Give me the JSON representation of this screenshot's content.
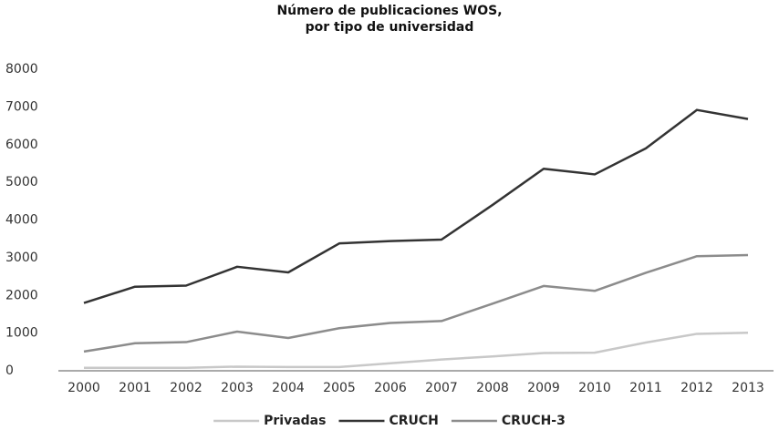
{
  "chart_data": {
    "type": "line",
    "title": [
      "Número de publicaciones WOS,",
      "por tipo de universidad"
    ],
    "categories": [
      "2000",
      "2001",
      "2002",
      "2003",
      "2004",
      "2005",
      "2006",
      "2007",
      "2008",
      "2009",
      "2010",
      "2011",
      "2012",
      "2013"
    ],
    "series": [
      {
        "name": "Privadas",
        "color": "#c8c8c8",
        "values": [
          80,
          80,
          80,
          110,
          100,
          100,
          200,
          300,
          380,
          470,
          480,
          750,
          980,
          1010
        ]
      },
      {
        "name": "CRUCH",
        "color": "#333333",
        "values": [
          1800,
          2230,
          2260,
          2760,
          2610,
          3380,
          3440,
          3480,
          4400,
          5360,
          5210,
          5900,
          6920,
          6680
        ]
      },
      {
        "name": "CRUCH-3",
        "color": "#8c8c8c",
        "values": [
          510,
          730,
          760,
          1040,
          870,
          1130,
          1270,
          1320,
          1780,
          2250,
          2120,
          2600,
          3040,
          3070
        ]
      }
    ],
    "ylim": [
      0,
      8000
    ],
    "yticks": [
      0,
      1000,
      2000,
      3000,
      4000,
      5000,
      6000,
      7000,
      8000
    ],
    "grid": false,
    "legend": "bottom"
  }
}
